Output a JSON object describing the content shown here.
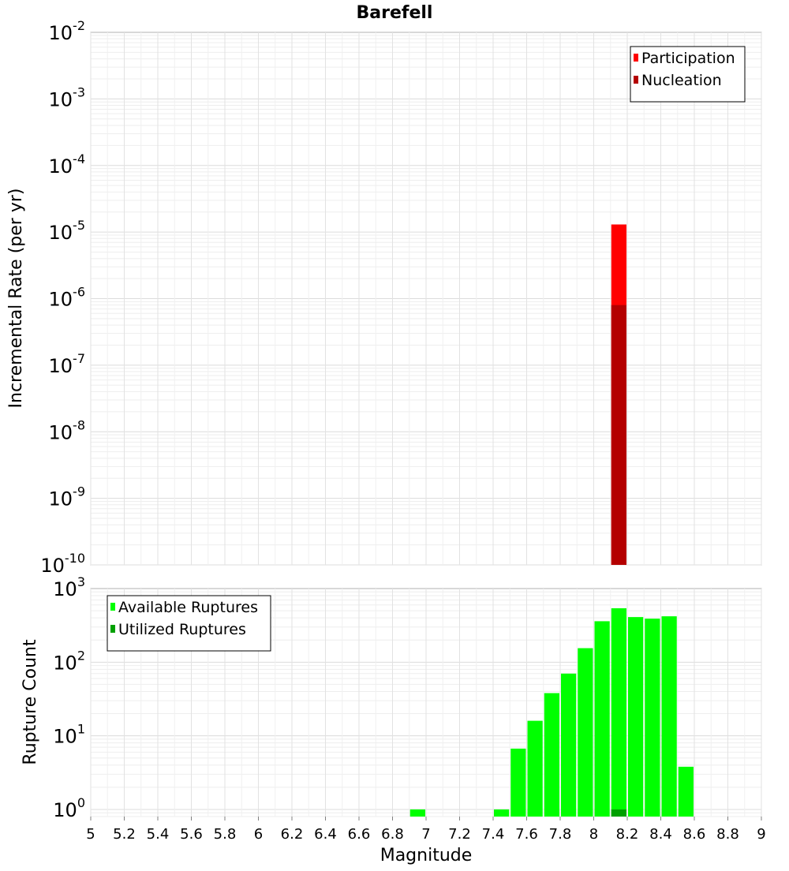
{
  "title": "Barefell",
  "chart_data": [
    {
      "type": "bar",
      "panel": "top",
      "ylabel": "Incremental Rate (per yr)",
      "xlabel": "",
      "y_scale": "log",
      "ylim": [
        1e-10,
        0.01
      ],
      "xlim": [
        5,
        9
      ],
      "bar_width": 0.1,
      "y_tick_exponents": [
        "-2",
        "-3",
        "-4",
        "-5",
        "-6",
        "-7",
        "-8",
        "-9",
        "-10"
      ],
      "y_tick_base": "10",
      "legend_position": "top-right",
      "series": [
        {
          "name": "Participation",
          "color": "#ff0000",
          "points": [
            {
              "x": 8.15,
              "y": 1.3e-05
            }
          ]
        },
        {
          "name": "Nucleation",
          "color": "#b40000",
          "points": [
            {
              "x": 8.15,
              "y": 8e-07
            }
          ]
        }
      ],
      "grid": true
    },
    {
      "type": "bar",
      "panel": "bottom",
      "ylabel": "Rupture Count",
      "xlabel": "Magnitude",
      "y_scale": "log",
      "ylim": [
        0.8,
        1000
      ],
      "xlim": [
        5,
        9
      ],
      "bar_width": 0.1,
      "y_tick_exponents": [
        "3",
        "2",
        "1",
        "0"
      ],
      "y_tick_base": "10",
      "x_ticks": [
        "5",
        "5.2",
        "5.4",
        "5.6",
        "5.8",
        "6",
        "6.2",
        "6.4",
        "6.6",
        "6.8",
        "7",
        "7.2",
        "7.4",
        "7.6",
        "7.8",
        "8",
        "8.2",
        "8.4",
        "8.6",
        "8.8",
        "9"
      ],
      "legend_position": "top-left",
      "series": [
        {
          "name": "Available Ruptures",
          "color": "#00ff00",
          "points": [
            {
              "x": 6.95,
              "y": 1
            },
            {
              "x": 7.45,
              "y": 1
            },
            {
              "x": 7.55,
              "y": 6.7
            },
            {
              "x": 7.65,
              "y": 16
            },
            {
              "x": 7.75,
              "y": 38
            },
            {
              "x": 7.85,
              "y": 70
            },
            {
              "x": 7.95,
              "y": 155
            },
            {
              "x": 8.05,
              "y": 360
            },
            {
              "x": 8.15,
              "y": 540
            },
            {
              "x": 8.25,
              "y": 410
            },
            {
              "x": 8.35,
              "y": 390
            },
            {
              "x": 8.45,
              "y": 420
            },
            {
              "x": 8.55,
              "y": 3.8
            }
          ]
        },
        {
          "name": "Utilized Ruptures",
          "color": "#00a000",
          "points": [
            {
              "x": 8.15,
              "y": 1
            }
          ]
        }
      ],
      "grid": true
    }
  ]
}
